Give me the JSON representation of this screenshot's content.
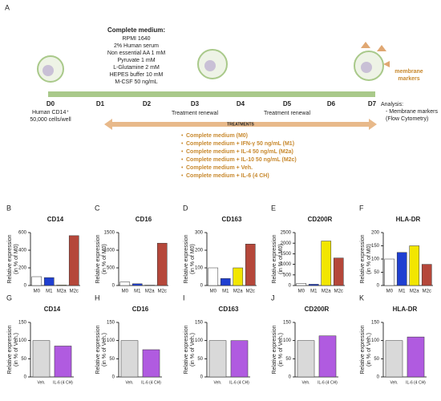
{
  "panel_a": {
    "label": "A",
    "medium_title": "Complete medium:",
    "medium_items": [
      "RPMI 1640",
      "2% Human serum",
      "Non essential AA 1 mM",
      "Pyruvate 1 mM",
      "L-Glutamine 2 mM",
      "HEPES buffer 10 mM",
      "M-CSF 50 ng/mL"
    ],
    "days": [
      "D0",
      "D1",
      "D2",
      "D3",
      "D4",
      "D5",
      "D6",
      "D7"
    ],
    "start_info": [
      "Human CD14⁺",
      "50,000 cells/well"
    ],
    "renewals": [
      "Treatment renewal",
      "Treatment renewal"
    ],
    "treatments_title": "TREATMENTS",
    "treatments": [
      "Complete medium (M0)",
      "Complete medium + IFN-γ 50 ng/mL (M1)",
      "Complete medium + IL-4 50 ng/mL (M2a)",
      "Complete medium + IL-10 50 ng/mL (M2c)",
      "Complete medium + Veh.",
      "Complete medium + IL-6 (4 CH)"
    ],
    "markers_label": [
      "membrane",
      "markers"
    ],
    "analysis": [
      "Analysis:",
      "- Membrane markers",
      "(Flow Cytometry)"
    ]
  },
  "chart_data": [
    {
      "type": "bar",
      "panel": "B",
      "title": "CD14",
      "ylabel": [
        "Relative expression",
        "(in % of M0)"
      ],
      "categories": [
        "M0",
        "M1",
        "M2a",
        "M2c"
      ],
      "values": [
        100,
        90,
        5,
        565
      ],
      "colors": [
        "#ffffff",
        "#1f3fd1",
        "#f2e600",
        "#b5473a"
      ],
      "ylim": [
        0,
        600
      ],
      "yticks": [
        0,
        200,
        400,
        600
      ]
    },
    {
      "type": "bar",
      "panel": "C",
      "title": "CD16",
      "ylabel": [
        "Relative expression",
        "(in % of M0)"
      ],
      "categories": [
        "M0",
        "M1",
        "M2a",
        "M2c"
      ],
      "values": [
        100,
        50,
        10,
        1200
      ],
      "colors": [
        "#ffffff",
        "#1f3fd1",
        "#f2e600",
        "#b5473a"
      ],
      "ylim": [
        0,
        1500
      ],
      "yticks": [
        0,
        500,
        1000,
        1500
      ]
    },
    {
      "type": "bar",
      "panel": "D",
      "title": "CD163",
      "ylabel": [
        "Relative expression",
        "(in % of M0)"
      ],
      "categories": [
        "M0",
        "M1",
        "M2a",
        "M2c"
      ],
      "values": [
        100,
        40,
        100,
        235
      ],
      "colors": [
        "#ffffff",
        "#1f3fd1",
        "#f2e600",
        "#b5473a"
      ],
      "ylim": [
        0,
        300
      ],
      "yticks": [
        0,
        100,
        200,
        300
      ]
    },
    {
      "type": "bar",
      "panel": "E",
      "title": "CD200R",
      "ylabel": [
        "Relative expression",
        "(in % of M0)"
      ],
      "categories": [
        "M0",
        "M1",
        "M2a",
        "M2c"
      ],
      "values": [
        100,
        60,
        2100,
        1300
      ],
      "colors": [
        "#ffffff",
        "#1f3fd1",
        "#f2e600",
        "#b5473a"
      ],
      "ylim": [
        0,
        2500
      ],
      "yticks": [
        0,
        500,
        1000,
        1500,
        2000,
        2500
      ]
    },
    {
      "type": "bar",
      "panel": "F",
      "title": "HLA-DR",
      "ylabel": [
        "Relative expression",
        "(in % of M0)"
      ],
      "categories": [
        "M0",
        "M1",
        "M2a",
        "M2c"
      ],
      "values": [
        100,
        125,
        150,
        80
      ],
      "colors": [
        "#ffffff",
        "#1f3fd1",
        "#f2e600",
        "#b5473a"
      ],
      "ylim": [
        0,
        200
      ],
      "yticks": [
        0,
        50,
        100,
        150,
        200
      ]
    },
    {
      "type": "bar",
      "panel": "G",
      "title": "CD14",
      "ylabel": [
        "Relative expression",
        "(in % of Veh.)"
      ],
      "categories": [
        "Veh.",
        "IL-6 (4 CH)"
      ],
      "values": [
        100,
        85
      ],
      "colors": [
        "#d9d9d9",
        "#b05be0"
      ],
      "ylim": [
        0,
        150
      ],
      "yticks": [
        0,
        50,
        100,
        150
      ]
    },
    {
      "type": "bar",
      "panel": "H",
      "title": "CD16",
      "ylabel": [
        "Relative expression",
        "(in % of Veh.)"
      ],
      "categories": [
        "Veh.",
        "IL-6 (4 CH)"
      ],
      "values": [
        100,
        75
      ],
      "colors": [
        "#d9d9d9",
        "#b05be0"
      ],
      "ylim": [
        0,
        150
      ],
      "yticks": [
        0,
        50,
        100,
        150
      ]
    },
    {
      "type": "bar",
      "panel": "I",
      "title": "CD163",
      "ylabel": [
        "Relative expression",
        "(in % of Veh.)"
      ],
      "categories": [
        "Veh.",
        "IL-6 (4 CH)"
      ],
      "values": [
        100,
        100
      ],
      "colors": [
        "#d9d9d9",
        "#b05be0"
      ],
      "ylim": [
        0,
        150
      ],
      "yticks": [
        0,
        50,
        100,
        150
      ]
    },
    {
      "type": "bar",
      "panel": "J",
      "title": "CD200R",
      "ylabel": [
        "Relative expression",
        "(in % of Veh.)"
      ],
      "categories": [
        "Veh.",
        "IL-6 (4 CH)"
      ],
      "values": [
        100,
        113
      ],
      "colors": [
        "#d9d9d9",
        "#b05be0"
      ],
      "ylim": [
        0,
        150
      ],
      "yticks": [
        0,
        50,
        100,
        150
      ]
    },
    {
      "type": "bar",
      "panel": "K",
      "title": "HLA-DR",
      "ylabel": [
        "Relative expression",
        "(in % of Veh.)"
      ],
      "categories": [
        "Veh.",
        "IL-6 (4 CH)"
      ],
      "values": [
        100,
        110
      ],
      "colors": [
        "#d9d9d9",
        "#b05be0"
      ],
      "ylim": [
        0,
        150
      ],
      "yticks": [
        0,
        50,
        100,
        150
      ]
    }
  ]
}
